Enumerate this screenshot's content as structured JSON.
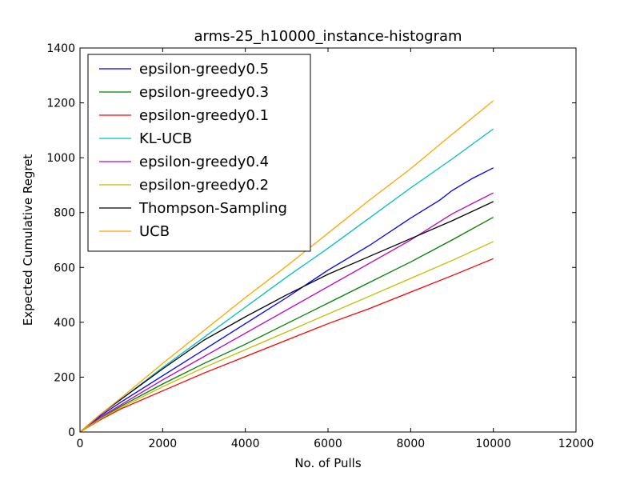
{
  "chart_data": {
    "type": "line",
    "title": "arms-25_h10000_instance-histogram",
    "xlabel": "No. of Pulls",
    "ylabel": "Expected Cumulative Regret",
    "xlim": [
      0,
      12000
    ],
    "ylim": [
      0,
      1400
    ],
    "xticks": [
      "0",
      "2000",
      "4000",
      "6000",
      "8000",
      "10000",
      "12000"
    ],
    "yticks": [
      "0",
      "200",
      "400",
      "600",
      "800",
      "1000",
      "1200",
      "1400"
    ],
    "grid": false,
    "legend_position": "top-left",
    "series": [
      {
        "name": "epsilon-greedy0.5",
        "color": "#0000ff",
        "x": [
          0,
          500,
          1000,
          2000,
          3000,
          4000,
          5000,
          6000,
          7000,
          8000,
          8700,
          9000,
          9500,
          10000
        ],
        "y": [
          0,
          60,
          110,
          205,
          300,
          395,
          490,
          590,
          680,
          780,
          845,
          880,
          925,
          963
        ]
      },
      {
        "name": "epsilon-greedy0.3",
        "color": "#008000",
        "x": [
          0,
          500,
          1000,
          2000,
          3000,
          4000,
          5000,
          6000,
          7000,
          8000,
          9000,
          10000
        ],
        "y": [
          0,
          50,
          95,
          175,
          250,
          320,
          395,
          470,
          545,
          620,
          700,
          783
        ]
      },
      {
        "name": "epsilon-greedy0.1",
        "color": "#ff0000",
        "x": [
          0,
          500,
          1000,
          2000,
          3000,
          4000,
          5000,
          6000,
          7000,
          8000,
          9000,
          10000
        ],
        "y": [
          0,
          45,
          85,
          150,
          215,
          275,
          335,
          395,
          450,
          510,
          570,
          632
        ]
      },
      {
        "name": "KL-UCB",
        "color": "#00bfbf",
        "x": [
          0,
          500,
          1000,
          2000,
          3000,
          4000,
          5000,
          6000,
          7000,
          8000,
          9000,
          10000
        ],
        "y": [
          0,
          65,
          120,
          235,
          345,
          455,
          565,
          670,
          780,
          890,
          995,
          1105
        ]
      },
      {
        "name": "epsilon-greedy0.4",
        "color": "#bf00bf",
        "x": [
          0,
          500,
          1000,
          2000,
          3000,
          4000,
          5000,
          6000,
          7000,
          8000,
          9000,
          10000
        ],
        "y": [
          0,
          55,
          100,
          190,
          275,
          360,
          445,
          530,
          615,
          700,
          795,
          872
        ]
      },
      {
        "name": "epsilon-greedy0.2",
        "color": "#bfbf00",
        "x": [
          0,
          500,
          1000,
          2000,
          3000,
          4000,
          5000,
          6000,
          7000,
          8000,
          9000,
          10000
        ],
        "y": [
          0,
          48,
          90,
          165,
          235,
          300,
          365,
          430,
          495,
          560,
          625,
          694
        ]
      },
      {
        "name": "Thompson-Sampling",
        "color": "#000000",
        "x": [
          0,
          500,
          1000,
          2000,
          3000,
          4000,
          5000,
          6000,
          7000,
          8000,
          9000,
          10000
        ],
        "y": [
          0,
          65,
          120,
          230,
          335,
          420,
          500,
          575,
          640,
          705,
          770,
          840
        ]
      },
      {
        "name": "UCB",
        "color": "#ffa500",
        "x": [
          0,
          500,
          1000,
          2000,
          3000,
          4000,
          5000,
          6000,
          7000,
          8000,
          9000,
          10000
        ],
        "y": [
          0,
          65,
          125,
          250,
          370,
          490,
          605,
          725,
          845,
          960,
          1085,
          1208
        ]
      }
    ]
  }
}
